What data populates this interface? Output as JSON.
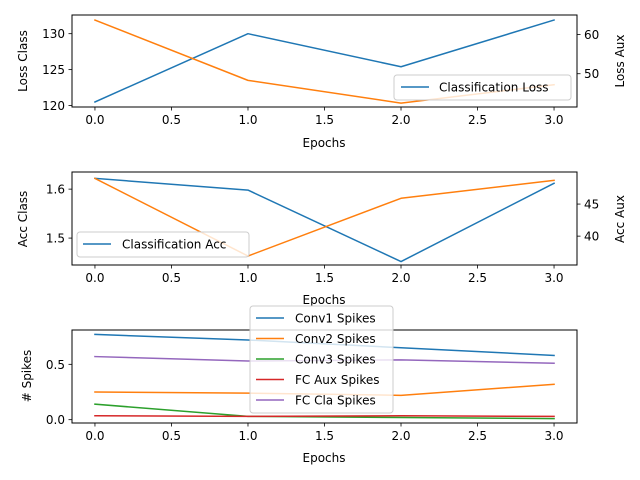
{
  "chart_data": [
    {
      "type": "line",
      "x": [
        0,
        1,
        2,
        3
      ],
      "xlabel": "Epochs",
      "ylabel": "Loss Class",
      "ylabel_right": "Loss Aux",
      "xlim": [
        -0.15,
        3.15
      ],
      "ylim": [
        119.8,
        132.6
      ],
      "ylim_right": [
        41.5,
        65.0
      ],
      "xticks": [
        0.0,
        0.5,
        1.0,
        1.5,
        2.0,
        2.5,
        3.0
      ],
      "xtick_labels": [
        "0.0",
        "0.5",
        "1.0",
        "1.5",
        "2.0",
        "2.5",
        "3.0"
      ],
      "yticks": [
        120,
        125,
        130
      ],
      "ytick_labels": [
        "120",
        "125",
        "130"
      ],
      "yticks_right": [
        50,
        60
      ],
      "ytick_labels_right": [
        "50",
        "60"
      ],
      "grid": false,
      "legend_position": "lower-right",
      "series": [
        {
          "name": "Classification Loss",
          "axis": "left",
          "color": "#1f77b4",
          "values": [
            120.5,
            130.0,
            125.4,
            131.9
          ]
        },
        {
          "axis": "right",
          "color": "#ff7f0e",
          "values": [
            63.7,
            48.3,
            42.5,
            47.2
          ]
        }
      ]
    },
    {
      "type": "line",
      "x": [
        0,
        1,
        2,
        3
      ],
      "xlabel": "Epochs",
      "ylabel": "Acc Class",
      "ylabel_right": "Acc Aux",
      "xlim": [
        -0.15,
        3.15
      ],
      "ylim": [
        1.445,
        1.635
      ],
      "ylim_right": [
        35.5,
        50.0
      ],
      "xticks": [
        0.0,
        0.5,
        1.0,
        1.5,
        2.0,
        2.5,
        3.0
      ],
      "xtick_labels": [
        "0.0",
        "0.5",
        "1.0",
        "1.5",
        "2.0",
        "2.5",
        "3.0"
      ],
      "yticks": [
        1.5,
        1.6
      ],
      "ytick_labels": [
        "1.5",
        "1.6"
      ],
      "yticks_right": [
        40,
        45
      ],
      "ytick_labels_right": [
        "40",
        "45"
      ],
      "grid": false,
      "legend_position": "lower-left",
      "series": [
        {
          "name": "Classification Acc",
          "axis": "left",
          "color": "#1f77b4",
          "values": [
            1.622,
            1.598,
            1.452,
            1.612
          ]
        },
        {
          "axis": "right",
          "color": "#ff7f0e",
          "values": [
            49.0,
            36.9,
            45.9,
            48.7
          ]
        }
      ]
    },
    {
      "type": "line",
      "x": [
        0,
        1,
        2,
        3
      ],
      "xlabel": "Epochs",
      "ylabel": "# Spikes",
      "xlim": [
        -0.15,
        3.15
      ],
      "ylim": [
        -0.03,
        0.81
      ],
      "xticks": [
        0.0,
        0.5,
        1.0,
        1.5,
        2.0,
        2.5,
        3.0
      ],
      "xtick_labels": [
        "0.0",
        "0.5",
        "1.0",
        "1.5",
        "2.0",
        "2.5",
        "3.0"
      ],
      "yticks": [
        0.0,
        0.5
      ],
      "ytick_labels": [
        "0.0",
        "0.5"
      ],
      "grid": false,
      "legend_position": "upper-center",
      "series": [
        {
          "name": "Conv1 Spikes",
          "color": "#1f77b4",
          "values": [
            0.77,
            0.72,
            0.65,
            0.58
          ]
        },
        {
          "name": "Conv2 Spikes",
          "color": "#ff7f0e",
          "values": [
            0.25,
            0.24,
            0.22,
            0.32
          ]
        },
        {
          "name": "Conv3 Spikes",
          "color": "#2ca02c",
          "values": [
            0.14,
            0.03,
            0.02,
            0.01
          ]
        },
        {
          "name": "FC Aux Spikes",
          "color": "#d62728",
          "values": [
            0.035,
            0.03,
            0.035,
            0.03
          ]
        },
        {
          "name": "FC Cla Spikes",
          "color": "#9467bd",
          "values": [
            0.57,
            0.53,
            0.54,
            0.51
          ]
        }
      ]
    }
  ]
}
